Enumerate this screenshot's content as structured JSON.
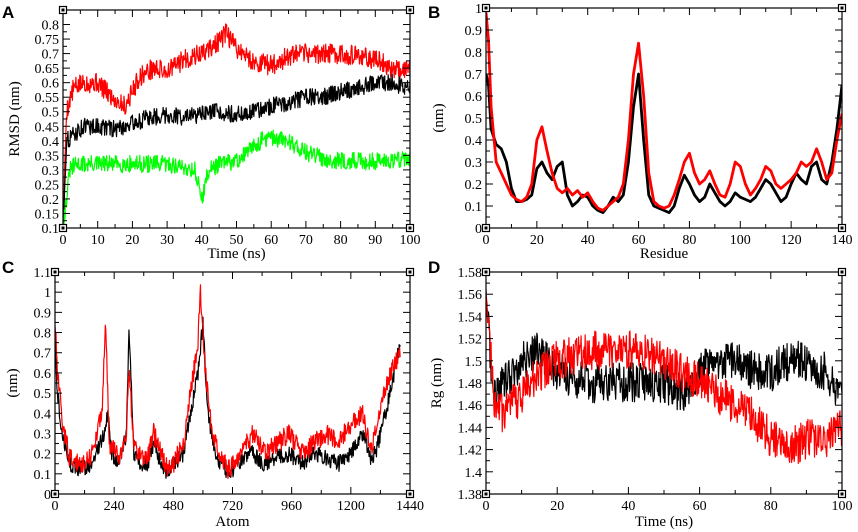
{
  "colors": {
    "black": "#000000",
    "red": "#ff0000",
    "green": "#00ff00"
  },
  "chart_data": [
    {
      "panel": "A",
      "type": "line",
      "xlabel": "Time (ns)",
      "ylabel": "RMSD (nm)",
      "xlim": [
        0,
        100
      ],
      "ylim": [
        0.1,
        0.85
      ],
      "xticks": [
        0,
        10,
        20,
        30,
        40,
        50,
        60,
        70,
        80,
        90,
        100
      ],
      "yticks": [
        0.1,
        0.15,
        0.2,
        0.25,
        0.3,
        0.35,
        0.4,
        0.45,
        0.5,
        0.55,
        0.6,
        0.65,
        0.7,
        0.75,
        0.8
      ],
      "noise": true,
      "series": [
        {
          "name": "red",
          "color": "#ff0000",
          "amp": 0.035,
          "x": [
            0,
            1,
            3,
            6,
            10,
            14,
            18,
            22,
            26,
            30,
            35,
            40,
            45,
            47,
            50,
            55,
            60,
            65,
            70,
            75,
            80,
            85,
            90,
            95,
            100
          ],
          "y": [
            0.1,
            0.5,
            0.58,
            0.6,
            0.6,
            0.55,
            0.52,
            0.62,
            0.65,
            0.64,
            0.68,
            0.7,
            0.74,
            0.77,
            0.72,
            0.67,
            0.66,
            0.69,
            0.7,
            0.7,
            0.7,
            0.69,
            0.68,
            0.65,
            0.65
          ]
        },
        {
          "name": "black",
          "color": "#000000",
          "amp": 0.03,
          "x": [
            0,
            1,
            3,
            6,
            10,
            15,
            20,
            25,
            30,
            35,
            40,
            45,
            50,
            55,
            60,
            65,
            70,
            75,
            80,
            85,
            90,
            95,
            100
          ],
          "y": [
            0.1,
            0.4,
            0.42,
            0.45,
            0.45,
            0.44,
            0.46,
            0.48,
            0.49,
            0.48,
            0.49,
            0.5,
            0.49,
            0.5,
            0.52,
            0.53,
            0.55,
            0.55,
            0.57,
            0.58,
            0.6,
            0.6,
            0.58
          ]
        },
        {
          "name": "green",
          "color": "#00ff00",
          "amp": 0.03,
          "x": [
            0,
            1,
            2,
            4,
            10,
            20,
            30,
            38,
            40,
            42,
            45,
            50,
            54,
            57,
            60,
            65,
            70,
            75,
            80,
            90,
            100
          ],
          "y": [
            0.1,
            0.2,
            0.3,
            0.32,
            0.32,
            0.32,
            0.32,
            0.3,
            0.2,
            0.3,
            0.32,
            0.33,
            0.37,
            0.4,
            0.41,
            0.4,
            0.36,
            0.34,
            0.33,
            0.33,
            0.34
          ]
        }
      ]
    },
    {
      "panel": "B",
      "type": "line",
      "xlabel": "Residue",
      "ylabel": "(nm)",
      "xlim": [
        0,
        140
      ],
      "ylim": [
        0,
        1
      ],
      "xticks": [
        0,
        20,
        40,
        60,
        80,
        100,
        120,
        140
      ],
      "yticks": [
        0,
        0.1,
        0.2,
        0.3,
        0.4,
        0.5,
        0.6,
        0.7,
        0.8,
        0.9,
        1
      ],
      "noise": false,
      "series": [
        {
          "name": "black",
          "color": "#000000",
          "x": [
            0,
            1,
            2,
            4,
            6,
            8,
            10,
            12,
            14,
            16,
            18,
            20,
            22,
            24,
            26,
            28,
            30,
            32,
            34,
            36,
            38,
            40,
            42,
            44,
            46,
            48,
            50,
            52,
            54,
            56,
            58,
            60,
            62,
            64,
            66,
            68,
            70,
            72,
            74,
            76,
            78,
            80,
            82,
            84,
            86,
            88,
            90,
            92,
            94,
            96,
            98,
            100,
            102,
            104,
            106,
            108,
            110,
            112,
            114,
            116,
            118,
            120,
            122,
            124,
            126,
            128,
            130,
            132,
            134,
            136,
            138,
            140
          ],
          "y": [
            0.7,
            0.65,
            0.45,
            0.38,
            0.36,
            0.3,
            0.18,
            0.12,
            0.12,
            0.13,
            0.15,
            0.27,
            0.3,
            0.25,
            0.22,
            0.28,
            0.3,
            0.15,
            0.1,
            0.12,
            0.15,
            0.14,
            0.1,
            0.08,
            0.07,
            0.1,
            0.14,
            0.12,
            0.15,
            0.3,
            0.55,
            0.7,
            0.4,
            0.15,
            0.1,
            0.09,
            0.08,
            0.07,
            0.1,
            0.18,
            0.24,
            0.2,
            0.15,
            0.12,
            0.14,
            0.2,
            0.16,
            0.12,
            0.1,
            0.12,
            0.16,
            0.14,
            0.13,
            0.12,
            0.14,
            0.18,
            0.22,
            0.2,
            0.16,
            0.12,
            0.14,
            0.2,
            0.25,
            0.22,
            0.2,
            0.28,
            0.3,
            0.22,
            0.2,
            0.3,
            0.45,
            0.65
          ]
        },
        {
          "name": "red",
          "color": "#ff0000",
          "x": [
            0,
            1,
            2,
            4,
            6,
            8,
            10,
            12,
            14,
            16,
            18,
            20,
            22,
            24,
            26,
            28,
            30,
            32,
            34,
            36,
            38,
            40,
            42,
            44,
            46,
            48,
            50,
            52,
            54,
            56,
            58,
            60,
            62,
            64,
            66,
            68,
            70,
            72,
            74,
            76,
            78,
            80,
            82,
            84,
            86,
            88,
            90,
            92,
            94,
            96,
            98,
            100,
            102,
            104,
            106,
            108,
            110,
            112,
            114,
            116,
            118,
            120,
            122,
            124,
            126,
            128,
            130,
            132,
            134,
            136,
            138,
            140
          ],
          "y": [
            0.98,
            0.85,
            0.55,
            0.3,
            0.25,
            0.2,
            0.15,
            0.13,
            0.12,
            0.14,
            0.2,
            0.4,
            0.46,
            0.35,
            0.25,
            0.18,
            0.16,
            0.18,
            0.15,
            0.17,
            0.14,
            0.16,
            0.12,
            0.09,
            0.08,
            0.1,
            0.12,
            0.14,
            0.2,
            0.4,
            0.7,
            0.84,
            0.6,
            0.25,
            0.12,
            0.1,
            0.09,
            0.1,
            0.15,
            0.22,
            0.3,
            0.34,
            0.25,
            0.2,
            0.22,
            0.26,
            0.2,
            0.15,
            0.14,
            0.2,
            0.3,
            0.28,
            0.2,
            0.15,
            0.18,
            0.22,
            0.28,
            0.26,
            0.2,
            0.18,
            0.2,
            0.22,
            0.25,
            0.3,
            0.28,
            0.3,
            0.36,
            0.3,
            0.22,
            0.25,
            0.4,
            0.52
          ]
        }
      ]
    },
    {
      "panel": "C",
      "type": "line",
      "xlabel": "Atom",
      "ylabel": "(nm)",
      "xlim": [
        0,
        1440
      ],
      "ylim": [
        0,
        1.1
      ],
      "xticks": [
        0,
        240,
        480,
        720,
        960,
        1200,
        1440
      ],
      "yticks": [
        0,
        0.1,
        0.2,
        0.3,
        0.4,
        0.5,
        0.6,
        0.7,
        0.8,
        0.9,
        1,
        1.1
      ],
      "noise": true,
      "series": [
        {
          "name": "black",
          "color": "#000000",
          "amp": 0.04,
          "x": [
            0,
            10,
            30,
            60,
            100,
            150,
            200,
            215,
            230,
            260,
            290,
            300,
            320,
            350,
            380,
            400,
            430,
            460,
            480,
            520,
            550,
            580,
            600,
            620,
            650,
            700,
            750,
            800,
            850,
            900,
            950,
            1000,
            1050,
            1100,
            1150,
            1200,
            1250,
            1280,
            1300,
            1330,
            1360,
            1400
          ],
          "y": [
            0.8,
            0.5,
            0.3,
            0.15,
            0.12,
            0.15,
            0.3,
            0.4,
            0.2,
            0.15,
            0.3,
            0.85,
            0.2,
            0.15,
            0.15,
            0.25,
            0.15,
            0.1,
            0.15,
            0.2,
            0.4,
            0.6,
            0.85,
            0.4,
            0.2,
            0.1,
            0.15,
            0.2,
            0.15,
            0.18,
            0.2,
            0.15,
            0.2,
            0.18,
            0.15,
            0.2,
            0.3,
            0.18,
            0.2,
            0.35,
            0.5,
            0.75
          ]
        },
        {
          "name": "red",
          "color": "#ff0000",
          "amp": 0.05,
          "x": [
            0,
            10,
            30,
            60,
            100,
            150,
            190,
            205,
            220,
            260,
            290,
            300,
            320,
            350,
            380,
            400,
            430,
            460,
            480,
            520,
            550,
            580,
            590,
            610,
            640,
            700,
            750,
            800,
            850,
            900,
            950,
            1000,
            1050,
            1100,
            1150,
            1200,
            1250,
            1280,
            1300,
            1330,
            1360,
            1400
          ],
          "y": [
            0.85,
            0.6,
            0.35,
            0.18,
            0.14,
            0.2,
            0.4,
            0.85,
            0.25,
            0.18,
            0.3,
            0.6,
            0.25,
            0.18,
            0.2,
            0.3,
            0.2,
            0.12,
            0.15,
            0.25,
            0.5,
            0.75,
            1.0,
            0.6,
            0.3,
            0.12,
            0.18,
            0.3,
            0.2,
            0.25,
            0.3,
            0.2,
            0.25,
            0.3,
            0.25,
            0.35,
            0.4,
            0.2,
            0.3,
            0.5,
            0.6,
            0.7
          ]
        }
      ]
    },
    {
      "panel": "D",
      "type": "line",
      "xlabel": "Time (ns)",
      "ylabel": "Rg (nm)",
      "xlim": [
        0,
        100
      ],
      "ylim": [
        1.38,
        1.58
      ],
      "xticks": [
        0,
        20,
        40,
        60,
        80,
        100
      ],
      "yticks": [
        1.38,
        1.4,
        1.42,
        1.44,
        1.46,
        1.48,
        1.5,
        1.52,
        1.54,
        1.56,
        1.58
      ],
      "noise": true,
      "series": [
        {
          "name": "black",
          "color": "#000000",
          "amp": 0.018,
          "x": [
            0,
            2,
            5,
            10,
            15,
            20,
            30,
            40,
            50,
            55,
            60,
            65,
            70,
            75,
            80,
            85,
            90,
            95,
            100
          ],
          "y": [
            1.56,
            1.47,
            1.48,
            1.5,
            1.51,
            1.49,
            1.48,
            1.48,
            1.48,
            1.47,
            1.49,
            1.5,
            1.5,
            1.49,
            1.49,
            1.5,
            1.5,
            1.49,
            1.47
          ]
        },
        {
          "name": "red",
          "color": "#ff0000",
          "amp": 0.018,
          "x": [
            0,
            2,
            5,
            10,
            15,
            20,
            30,
            40,
            50,
            55,
            60,
            65,
            70,
            75,
            80,
            85,
            90,
            95,
            100
          ],
          "y": [
            1.57,
            1.47,
            1.45,
            1.47,
            1.49,
            1.5,
            1.51,
            1.51,
            1.5,
            1.49,
            1.48,
            1.47,
            1.46,
            1.45,
            1.43,
            1.42,
            1.43,
            1.43,
            1.44
          ]
        }
      ]
    }
  ]
}
